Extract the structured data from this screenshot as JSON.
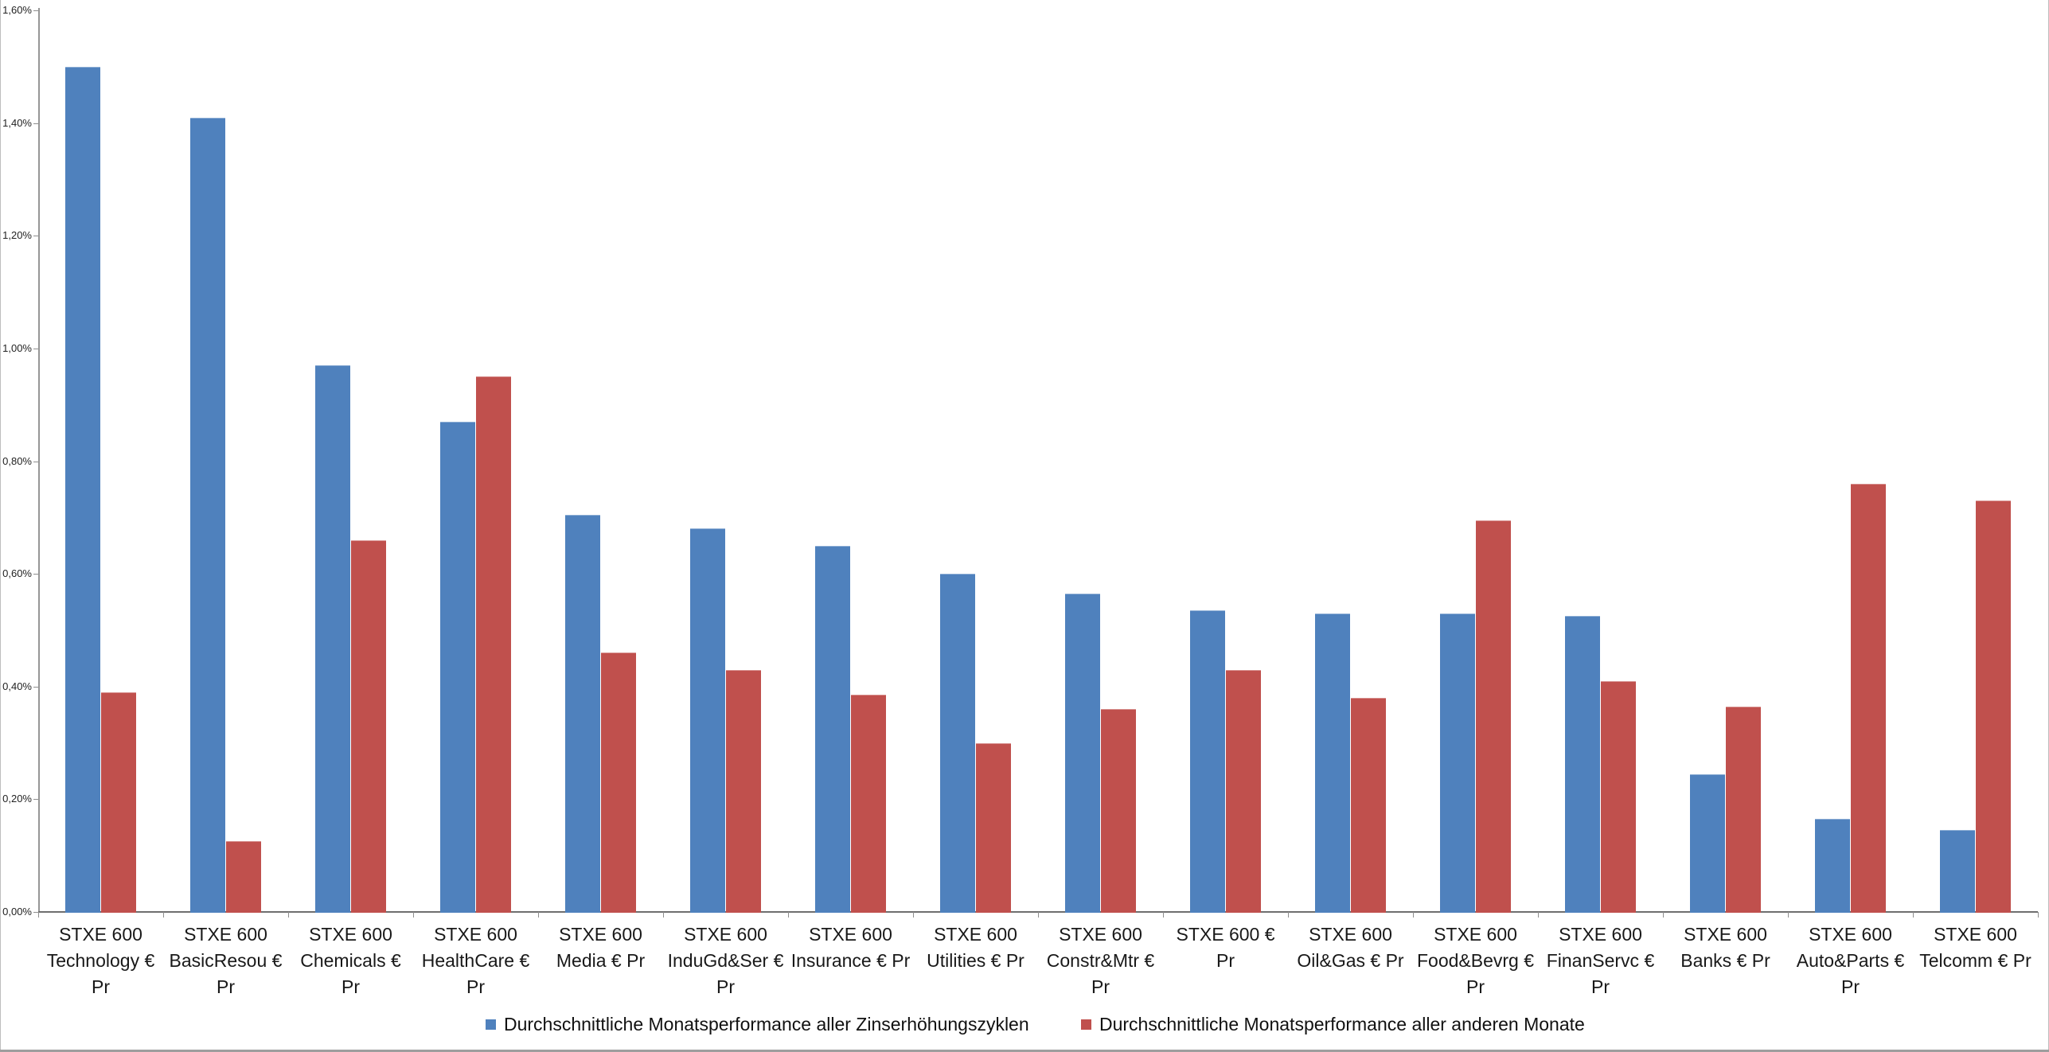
{
  "frame": {
    "background": "#ffffff",
    "border_color": "#9e9e9e"
  },
  "chart_data": {
    "type": "bar",
    "title": "",
    "xlabel": "",
    "ylabel": "",
    "grid": false,
    "legend_position": "bottom",
    "categories": [
      "STXE 600 Technology € Pr",
      "STXE 600 BasicResou € Pr",
      "STXE 600 Chemicals € Pr",
      "STXE 600 HealthCare € Pr",
      "STXE 600 Media € Pr",
      "STXE 600 InduGd&Ser € Pr",
      "STXE 600 Insurance € Pr",
      "STXE 600 Utilities € Pr",
      "STXE 600 Constr&Mtr € Pr",
      "STXE 600 € Pr",
      "STXE 600 Oil&Gas € Pr",
      "STXE 600 Food&Bevrg € Pr",
      "STXE 600 FinanServc € Pr",
      "STXE 600 Banks € Pr",
      "STXE 600 Auto&Parts € Pr",
      "STXE 600 Telcomm € Pr"
    ],
    "series": [
      {
        "name": "Durchschnittliche Monatsperformance aller Zinserhöhungszyklen",
        "color": "#4F81BD",
        "values": [
          1.5,
          1.41,
          0.97,
          0.87,
          0.705,
          0.68,
          0.65,
          0.6,
          0.565,
          0.535,
          0.53,
          0.53,
          0.525,
          0.245,
          0.165,
          0.145
        ]
      },
      {
        "name": "Durchschnittliche Monatsperformance aller anderen Monate",
        "color": "#C0504D",
        "values": [
          0.39,
          0.125,
          0.66,
          0.95,
          0.46,
          0.43,
          0.385,
          0.3,
          0.36,
          0.43,
          0.38,
          0.695,
          0.41,
          0.365,
          0.76,
          0.73
        ]
      }
    ],
    "y_axis": {
      "min": 0,
      "max": 1.6,
      "step": 0.2,
      "unit": "%",
      "tick_labels": [
        "0,00%",
        "0,20%",
        "0,40%",
        "0,60%",
        "0,80%",
        "1,00%",
        "1,20%",
        "1,40%",
        "1,60%"
      ]
    }
  }
}
